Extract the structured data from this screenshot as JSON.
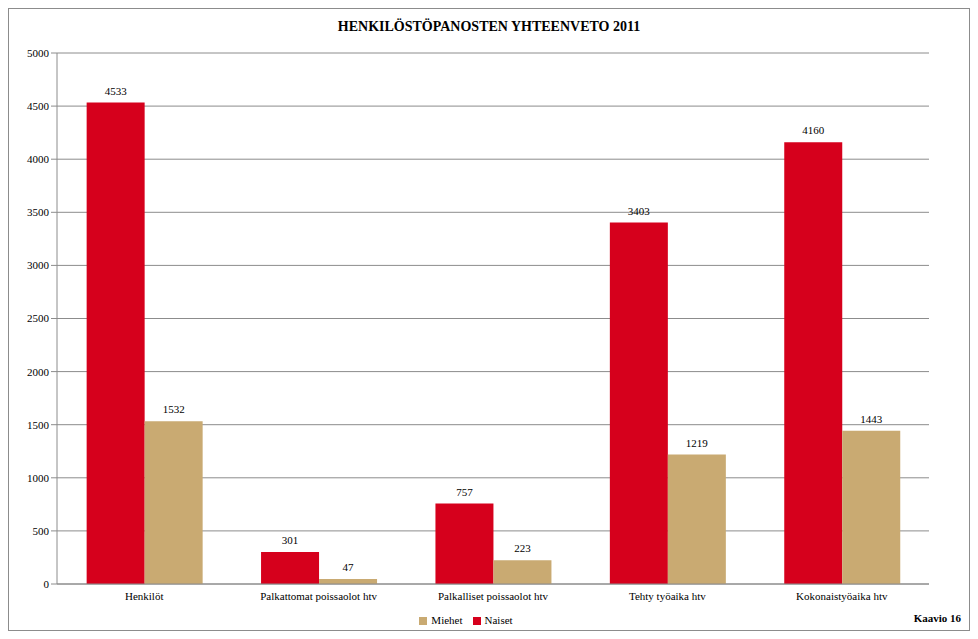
{
  "chart_data": {
    "type": "bar",
    "title": "HENKILÖSTÖPANOSTEN YHTEENVETO 2011",
    "annotation": "Kaavio 16",
    "categories": [
      "Henkilöt",
      "Palkattomat poissaolot htv",
      "Palkalliset poissaolot htv",
      "Tehty työaika htv",
      "Kokonaistyöaika htv"
    ],
    "series": [
      {
        "name": "Naiset",
        "color": "#d6001c",
        "values": [
          4533,
          301,
          757,
          3403,
          4160
        ]
      },
      {
        "name": "Miehet",
        "color": "#c9aa72",
        "values": [
          1532,
          47,
          223,
          1219,
          1443
        ]
      }
    ],
    "ylim": [
      0,
      5000
    ],
    "yticks": [
      0,
      500,
      1000,
      1500,
      2000,
      2500,
      3000,
      3500,
      4000,
      4500,
      5000
    ],
    "grid": true,
    "legend": "bottom",
    "data_labels": true
  }
}
